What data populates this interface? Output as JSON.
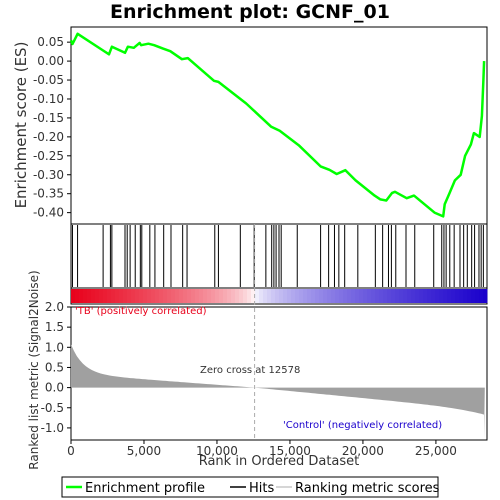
{
  "chart_data": {
    "type": "line",
    "title": "Enrichment plot: GCNF_01",
    "ylabel": "Enrichment score (ES)",
    "xlabel": "Rank in Ordered Dataset",
    "ylabel2": "Ranked list metric (Signal2Noise)",
    "xlim": [
      0,
      28500
    ],
    "ylim": [
      -0.43,
      0.09
    ],
    "ylim2": [
      -1.3,
      2.0
    ],
    "x_ticks": [
      0,
      5000,
      10000,
      15000,
      20000,
      25000
    ],
    "x_tick_labels": [
      "0",
      "5,000",
      "10,000",
      "15,000",
      "20,000",
      "25,000"
    ],
    "y_ticks": [
      0.05,
      0.0,
      -0.05,
      -0.1,
      -0.15,
      -0.2,
      -0.25,
      -0.3,
      -0.35,
      -0.4
    ],
    "y_tick_labels": [
      "0.05",
      "0.00",
      "-0.05",
      "-0.10",
      "-0.15",
      "-0.20",
      "-0.25",
      "-0.30",
      "-0.35",
      "-0.40"
    ],
    "y2_ticks": [
      2.0,
      1.5,
      1.0,
      0.5,
      0.0,
      -0.5,
      -1.0
    ],
    "y2_tick_labels": [
      "2.0",
      "1.5",
      "1.0",
      "0.5",
      "0.0",
      "-0.5",
      "-1.0"
    ],
    "series": [
      {
        "name": "Enrichment profile",
        "color": "#00ff00",
        "x": [
          0,
          100,
          450,
          2200,
          2600,
          2800,
          3700,
          3900,
          4300,
          4700,
          4800,
          5300,
          5700,
          6300,
          6800,
          7600,
          8000,
          9800,
          10100,
          12000,
          13700,
          14300,
          15600,
          17100,
          17700,
          18200,
          18800,
          19500,
          20800,
          21200,
          21600,
          22000,
          22200,
          23000,
          23500,
          24900,
          25500,
          25600,
          25900,
          26300,
          26700,
          27000,
          27400,
          27600,
          28000,
          28150,
          28250,
          28300
        ],
        "y": [
          0.055,
          0.045,
          0.072,
          0.028,
          0.018,
          0.038,
          0.022,
          0.038,
          0.035,
          0.048,
          0.042,
          0.046,
          0.042,
          0.033,
          0.026,
          0.005,
          0.008,
          -0.052,
          -0.055,
          -0.112,
          -0.173,
          -0.184,
          -0.222,
          -0.278,
          -0.287,
          -0.298,
          -0.288,
          -0.315,
          -0.355,
          -0.365,
          -0.368,
          -0.348,
          -0.345,
          -0.362,
          -0.355,
          -0.4,
          -0.41,
          -0.378,
          -0.352,
          -0.315,
          -0.3,
          -0.25,
          -0.22,
          -0.19,
          -0.2,
          -0.145,
          -0.05,
          0.0
        ]
      }
    ],
    "hits_x": [
      100,
      450,
      2200,
      2700,
      2800,
      3700,
      3850,
      4050,
      4400,
      4750,
      4850,
      5400,
      5750,
      6350,
      6850,
      7650,
      7950,
      9850,
      10100,
      11600,
      12550,
      13350,
      13750,
      13900,
      14050,
      14250,
      14400,
      15500,
      17100,
      17650,
      18050,
      18350,
      18750,
      19650,
      20850,
      21350,
      21750,
      21950,
      22250,
      22950,
      23550,
      24850,
      25400,
      25550,
      25700,
      25950,
      26250,
      26650,
      26900,
      27150,
      27450,
      27650,
      27950,
      28100,
      28250
    ],
    "metric_top": 1.07,
    "metric_bottom": -1.25,
    "zero_cross": 12578,
    "annotations": {
      "positive": "'TB' (positively correlated)",
      "zero": "Zero cross at 12578",
      "negative": "'Control' (negatively correlated)"
    },
    "legend": {
      "entries": [
        "Enrichment profile",
        "Hits",
        "Ranking metric scores"
      ],
      "placement": "bottom"
    },
    "colors": {
      "es_line": "#00ff00",
      "positive": "#e8001a",
      "negative": "#1a00cc",
      "zero_line": "#aaaaaa",
      "metric_fill": "#a0a0a0"
    }
  }
}
